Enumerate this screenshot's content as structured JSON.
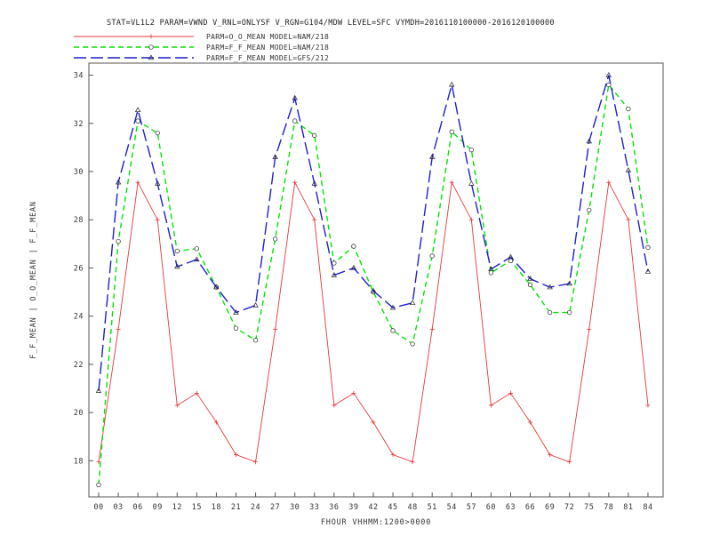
{
  "chart_data": {
    "type": "line",
    "title": "STAT=VL1L2 PARAM=VWND V_RNL=ONLYSF V_RGN=G104/MDW LEVEL=SFC VYMDH=2016110100000-2016120100000",
    "xlabel": "FHOUR VHHMM:1200>0000",
    "ylabel": "F_F_MEAN | O_O_MEAN | F_F_MEAN",
    "categories": [
      "00",
      "03",
      "06",
      "09",
      "12",
      "15",
      "18",
      "21",
      "24",
      "27",
      "30",
      "33",
      "36",
      "39",
      "42",
      "45",
      "48",
      "51",
      "54",
      "57",
      "60",
      "63",
      "66",
      "69",
      "72",
      "75",
      "78",
      "81",
      "84"
    ],
    "ylim": [
      16.5,
      34.5
    ],
    "yticks": [
      "18",
      "20",
      "22",
      "24",
      "26",
      "28",
      "30",
      "32",
      "34"
    ],
    "legend_placement": "top-left",
    "series": [
      {
        "name": "PARM=O_O_MEAN MODEL=NAM/218",
        "color": "#e8383b",
        "dash": "solid",
        "marker": "plus",
        "values": [
          17.95,
          23.45,
          29.55,
          28.0,
          20.3,
          20.8,
          19.6,
          18.25,
          17.95,
          23.45,
          29.55,
          28.0,
          20.3,
          20.8,
          19.6,
          18.25,
          17.95,
          23.45,
          29.55,
          28.0,
          20.3,
          20.8,
          19.6,
          18.25,
          17.95,
          23.45,
          29.55,
          28.0,
          20.3
        ]
      },
      {
        "name": "PARM=F_F_MEAN MODEL=NAM/218",
        "color": "#00e600",
        "dash": "medium",
        "marker": "circle",
        "values": [
          17.0,
          27.1,
          32.1,
          31.6,
          26.7,
          26.8,
          25.2,
          23.5,
          23.0,
          27.2,
          32.1,
          31.5,
          26.2,
          26.9,
          25.0,
          23.4,
          22.85,
          26.5,
          31.65,
          30.9,
          25.8,
          26.3,
          25.3,
          24.15,
          24.15,
          28.4,
          33.6,
          32.6,
          26.85
        ]
      },
      {
        "name": "PARM=F_F_MEAN MODEL=GFS/212",
        "color": "#1f1fcf",
        "dash": "long",
        "marker": "triangle",
        "values": [
          20.9,
          29.55,
          32.55,
          29.5,
          26.05,
          26.35,
          25.2,
          24.15,
          24.45,
          30.6,
          33.05,
          29.5,
          25.7,
          26.0,
          25.05,
          24.35,
          24.55,
          30.6,
          33.6,
          29.5,
          25.95,
          26.45,
          25.55,
          25.2,
          25.35,
          31.25,
          34.0,
          30.05,
          25.85
        ]
      }
    ],
    "grid": false
  }
}
